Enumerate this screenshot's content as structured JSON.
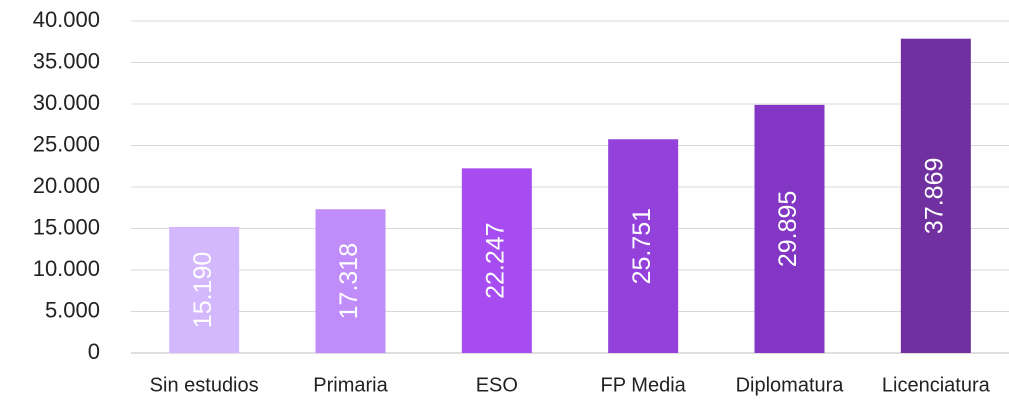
{
  "chart_data": {
    "type": "bar",
    "categories": [
      "Sin estudios",
      "Primaria",
      "ESO",
      "FP Media",
      "Diplomatura",
      "Licenciatura"
    ],
    "values": [
      15190,
      17318,
      22247,
      25751,
      29895,
      37869
    ],
    "value_labels": [
      "15.190",
      "17.318",
      "22.247",
      "25.751",
      "29.895",
      "37.869"
    ],
    "colors": [
      "#d4b8fd",
      "#bf8cf9",
      "#a64cf0",
      "#9441dc",
      "#8236c3",
      "#7030a0"
    ],
    "ylim": [
      0,
      40000
    ],
    "yticks": [
      0,
      {
        "value": 5000,
        "label": "5.000"
      },
      {
        "value": 10000,
        "label": "10.000"
      },
      {
        "value": 15000,
        "label": "15.000"
      },
      {
        "value": 20000,
        "label": "20.000"
      },
      {
        "value": 25000,
        "label": "25.000"
      },
      {
        "value": 30000,
        "label": "30.000"
      },
      {
        "value": 35000,
        "label": "35.000"
      },
      {
        "value": 40000,
        "label": "40.000"
      }
    ],
    "grid": true
  }
}
